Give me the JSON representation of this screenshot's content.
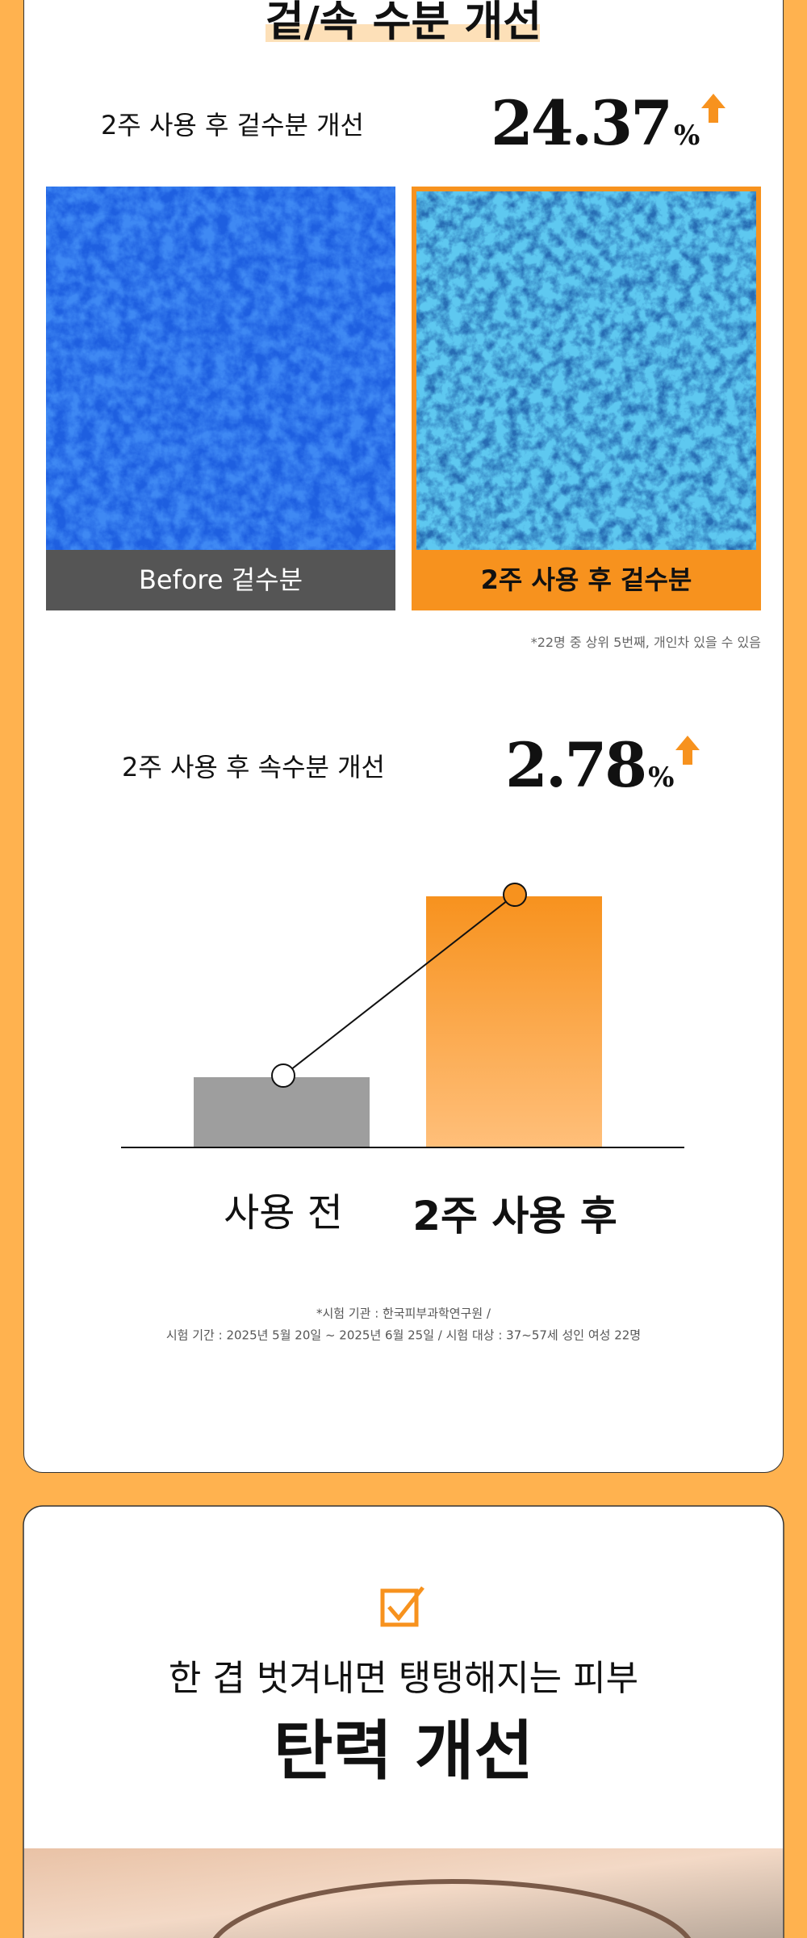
{
  "moisture": {
    "title": "겉/속 수분 개선",
    "outer": {
      "label": "2주 사용 후 겉수분 개선",
      "value": "24.37",
      "unit": "%",
      "before_caption": "Before 겉수분",
      "after_caption": "2주 사용 후 겉수분",
      "note": "*22명 중 상위 5번째, 개인차 있을 수 있음"
    },
    "inner": {
      "label": "2주 사용 후 속수분 개선",
      "value": "2.78",
      "unit": "%",
      "before_label": "사용 전",
      "after_label": "2주 사용 후"
    },
    "source": [
      "*시험 기관 : 한국피부과학연구원 /",
      "시험 기간 : 2025년 5월 20일 ~ 2025년 6월 25일 / 시험 대상 : 37~57세 성인 여성 22명"
    ]
  },
  "elasticity": {
    "subtitle": "한 겹 벗겨내면 탱탱해지는 피부",
    "title": "탄력 개선"
  }
}
